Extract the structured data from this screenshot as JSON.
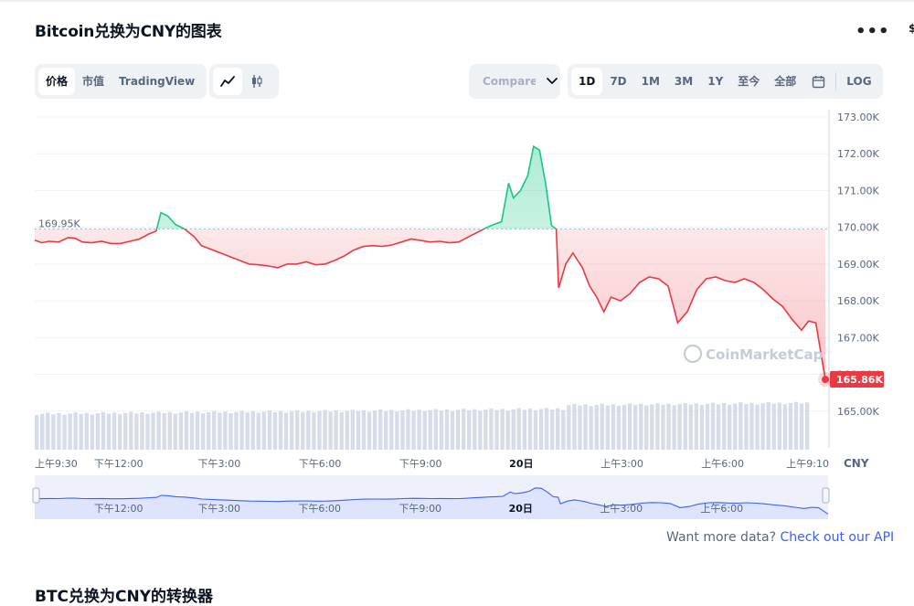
{
  "header": {
    "title": "Bitcoin兑换为CNY的图表",
    "more_icon": "more-horizontal-icon"
  },
  "view_tabs": {
    "price": "价格",
    "market_cap": "市值",
    "tradingview": "TradingView",
    "active": "价格"
  },
  "chart_style": {
    "line_icon": "line-chart-icon",
    "candle_icon": "candlestick-icon",
    "active": "line"
  },
  "compare": {
    "label": "Compare with",
    "icon": "chevron-down-icon"
  },
  "ranges": {
    "items": [
      "1D",
      "7D",
      "1M",
      "3M",
      "1Y",
      "至今",
      "全部"
    ],
    "active": "1D",
    "calendar_icon": "calendar-icon",
    "log_label": "LOG"
  },
  "watermark": "CoinMarketCap",
  "footer": {
    "prompt": "Want more data?",
    "link": "Check out our API"
  },
  "next_section": {
    "title": "BTC兑换为CNY的转换器"
  },
  "colors": {
    "up": "#16c784",
    "down": "#ea3943",
    "accent": "#3861fb"
  },
  "chart_data": {
    "type": "line",
    "title": "",
    "currency_label": "CNY",
    "open_price": 169950,
    "open_price_label": "169.95K",
    "current_price_label": "165.86K",
    "y_ticks": [
      "173.00K",
      "172.00K",
      "171.00K",
      "170.00K",
      "169.00K",
      "168.00K",
      "167.00K",
      "166.00K",
      "165.00K"
    ],
    "y_tick_values": [
      173000,
      172000,
      171000,
      170000,
      169000,
      168000,
      167000,
      166000,
      165000
    ],
    "ylim": [
      164000,
      173000
    ],
    "x_ticks": [
      "上午9:30",
      "下午12:00",
      "下午3:00",
      "下午6:00",
      "下午9:00",
      "20日",
      "上午3:00",
      "上午6:00",
      "上午9:10"
    ],
    "x_tick_hours": [
      0,
      2.5,
      5.5,
      8.5,
      11.5,
      14.5,
      17.5,
      20.5,
      23.67
    ],
    "xlim_hours": [
      0,
      23.67
    ],
    "x_start_time": "上午9:30",
    "grid": true,
    "series": [
      {
        "values": [
          [
            0,
            169650
          ],
          [
            0.3,
            169580
          ],
          [
            0.6,
            169620
          ],
          [
            1.0,
            169600
          ],
          [
            1.4,
            169720
          ],
          [
            1.7,
            169700
          ],
          [
            2.0,
            169600
          ],
          [
            2.4,
            169580
          ],
          [
            2.8,
            169620
          ],
          [
            3.2,
            169560
          ],
          [
            3.6,
            169560
          ],
          [
            4.0,
            169620
          ],
          [
            4.4,
            169680
          ],
          [
            4.8,
            169820
          ],
          [
            5.1,
            169900
          ],
          [
            5.3,
            170400
          ],
          [
            5.6,
            170300
          ],
          [
            5.9,
            170080
          ],
          [
            6.3,
            169950
          ],
          [
            6.7,
            169740
          ],
          [
            7.0,
            169500
          ],
          [
            7.4,
            169400
          ],
          [
            7.8,
            169300
          ],
          [
            8.2,
            169200
          ],
          [
            8.6,
            169100
          ],
          [
            9.0,
            169000
          ],
          [
            9.4,
            168980
          ],
          [
            9.8,
            168950
          ],
          [
            10.2,
            168900
          ],
          [
            10.6,
            169000
          ],
          [
            11.0,
            169000
          ],
          [
            11.4,
            169060
          ],
          [
            11.8,
            168980
          ],
          [
            12.2,
            169000
          ],
          [
            12.6,
            169100
          ],
          [
            13.0,
            169220
          ],
          [
            13.4,
            169380
          ],
          [
            13.8,
            169480
          ],
          [
            14.2,
            169500
          ],
          [
            14.6,
            169480
          ],
          [
            15.0,
            169520
          ],
          [
            15.4,
            169600
          ],
          [
            15.8,
            169680
          ],
          [
            16.2,
            169640
          ],
          [
            16.6,
            169600
          ],
          [
            17.0,
            169620
          ],
          [
            17.4,
            169580
          ],
          [
            17.8,
            169600
          ],
          [
            18.1,
            169700
          ],
          [
            18.4,
            169800
          ],
          [
            18.7,
            169900
          ],
          [
            19.0,
            170000
          ],
          [
            19.3,
            170080
          ],
          [
            19.6,
            170150
          ],
          [
            19.9,
            171200
          ],
          [
            20.1,
            170800
          ],
          [
            20.4,
            171000
          ],
          [
            20.7,
            171400
          ],
          [
            20.95,
            172200
          ],
          [
            21.2,
            172100
          ],
          [
            21.45,
            171200
          ],
          [
            21.7,
            170050
          ],
          [
            21.9,
            169950
          ],
          [
            22.0,
            168350
          ],
          [
            22.3,
            169000
          ],
          [
            22.6,
            169300
          ],
          [
            23.0,
            168900
          ],
          [
            23.3,
            168400
          ],
          [
            23.6,
            168100
          ],
          [
            23.9,
            167700
          ],
          [
            24.2,
            168100
          ],
          [
            24.6,
            168000
          ],
          [
            25.0,
            168200
          ],
          [
            25.4,
            168500
          ],
          [
            25.8,
            168650
          ],
          [
            26.2,
            168600
          ],
          [
            26.6,
            168400
          ],
          [
            27.0,
            167400
          ],
          [
            27.4,
            167700
          ],
          [
            27.8,
            168300
          ],
          [
            28.2,
            168600
          ],
          [
            28.6,
            168650
          ],
          [
            29.0,
            168550
          ],
          [
            29.4,
            168500
          ],
          [
            29.8,
            168600
          ],
          [
            30.2,
            168500
          ],
          [
            30.6,
            168300
          ],
          [
            31.0,
            168050
          ],
          [
            31.4,
            167850
          ],
          [
            31.8,
            167500
          ],
          [
            32.2,
            167200
          ],
          [
            32.5,
            167450
          ],
          [
            32.8,
            167400
          ],
          [
            33.2,
            165860
          ]
        ]
      }
    ],
    "volume_bars": 140,
    "navigator_labels": [
      "下午12:00",
      "下午3:00",
      "下午6:00",
      "下午9:00",
      "20日",
      "上午3:00",
      "上午6:00"
    ]
  }
}
